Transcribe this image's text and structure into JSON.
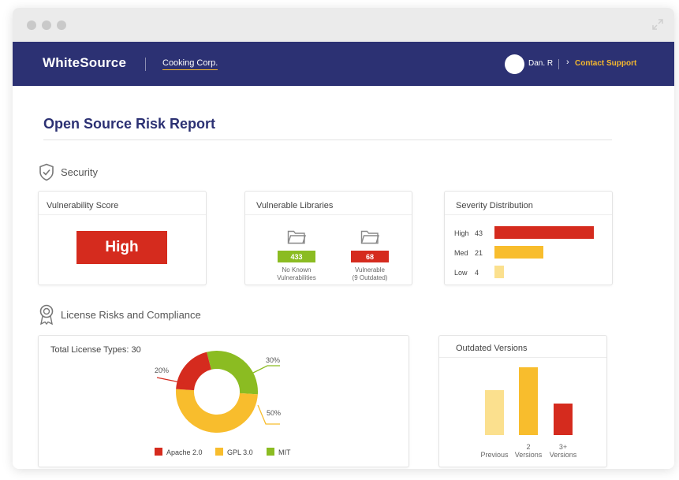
{
  "app": {
    "brand": "WhiteSource",
    "org": "Cooking Corp.",
    "user": "Dan. R",
    "support_label": "Contact Support"
  },
  "icons": {
    "window_dots": "traffic-light-dots",
    "expand": "expand-icon",
    "avatar": "avatar",
    "security": "shield-check-icon",
    "license": "award-ribbon-icon",
    "folder": "folder-icon",
    "support_chevron": "chevron-right-icon"
  },
  "colors": {
    "navy": "#2c3173",
    "red": "#d52b1e",
    "yellow": "#f8bd2d",
    "green": "#8bbc22",
    "light_yellow": "#fbe08e",
    "gold": "#f5b82e"
  },
  "page": {
    "title": "Open Source Risk Report"
  },
  "security": {
    "title": "Security",
    "vulnerability_score": {
      "title": "Vulnerability Score",
      "value": "High"
    },
    "vulnerable_libraries": {
      "title": "Vulnerable Libraries",
      "items": [
        {
          "count": "433",
          "caption_line1": "No Known",
          "caption_line2": "Vulnerabilities"
        },
        {
          "count": "68",
          "caption_line1": "Vulnerable",
          "caption_line2": "(9 Outdated)"
        }
      ]
    },
    "severity_distribution": {
      "title": "Severity Distribution",
      "rows": [
        {
          "label": "High",
          "count": "43",
          "value": 43
        },
        {
          "label": "Med",
          "count": "21",
          "value": 21
        },
        {
          "label": "Low",
          "count": "4",
          "value": 4
        }
      ]
    }
  },
  "license": {
    "title": "License Risks and Compliance",
    "total": "Total License Types: 30",
    "donut": [
      {
        "name": "Apache 2.0",
        "percent": 20,
        "label": "20%"
      },
      {
        "name": "GPL 3.0",
        "percent": 50,
        "label": "50%"
      },
      {
        "name": "MIT",
        "percent": 30,
        "label": "30%"
      }
    ],
    "outdated": {
      "title": "Outdated Versions",
      "bars": [
        {
          "label1": "",
          "label2": "Previous",
          "value": 0.66
        },
        {
          "label1": "2",
          "label2": "Versions",
          "value": 1.0
        },
        {
          "label1": "3+",
          "label2": "Versions",
          "value": 0.46
        }
      ]
    }
  }
}
